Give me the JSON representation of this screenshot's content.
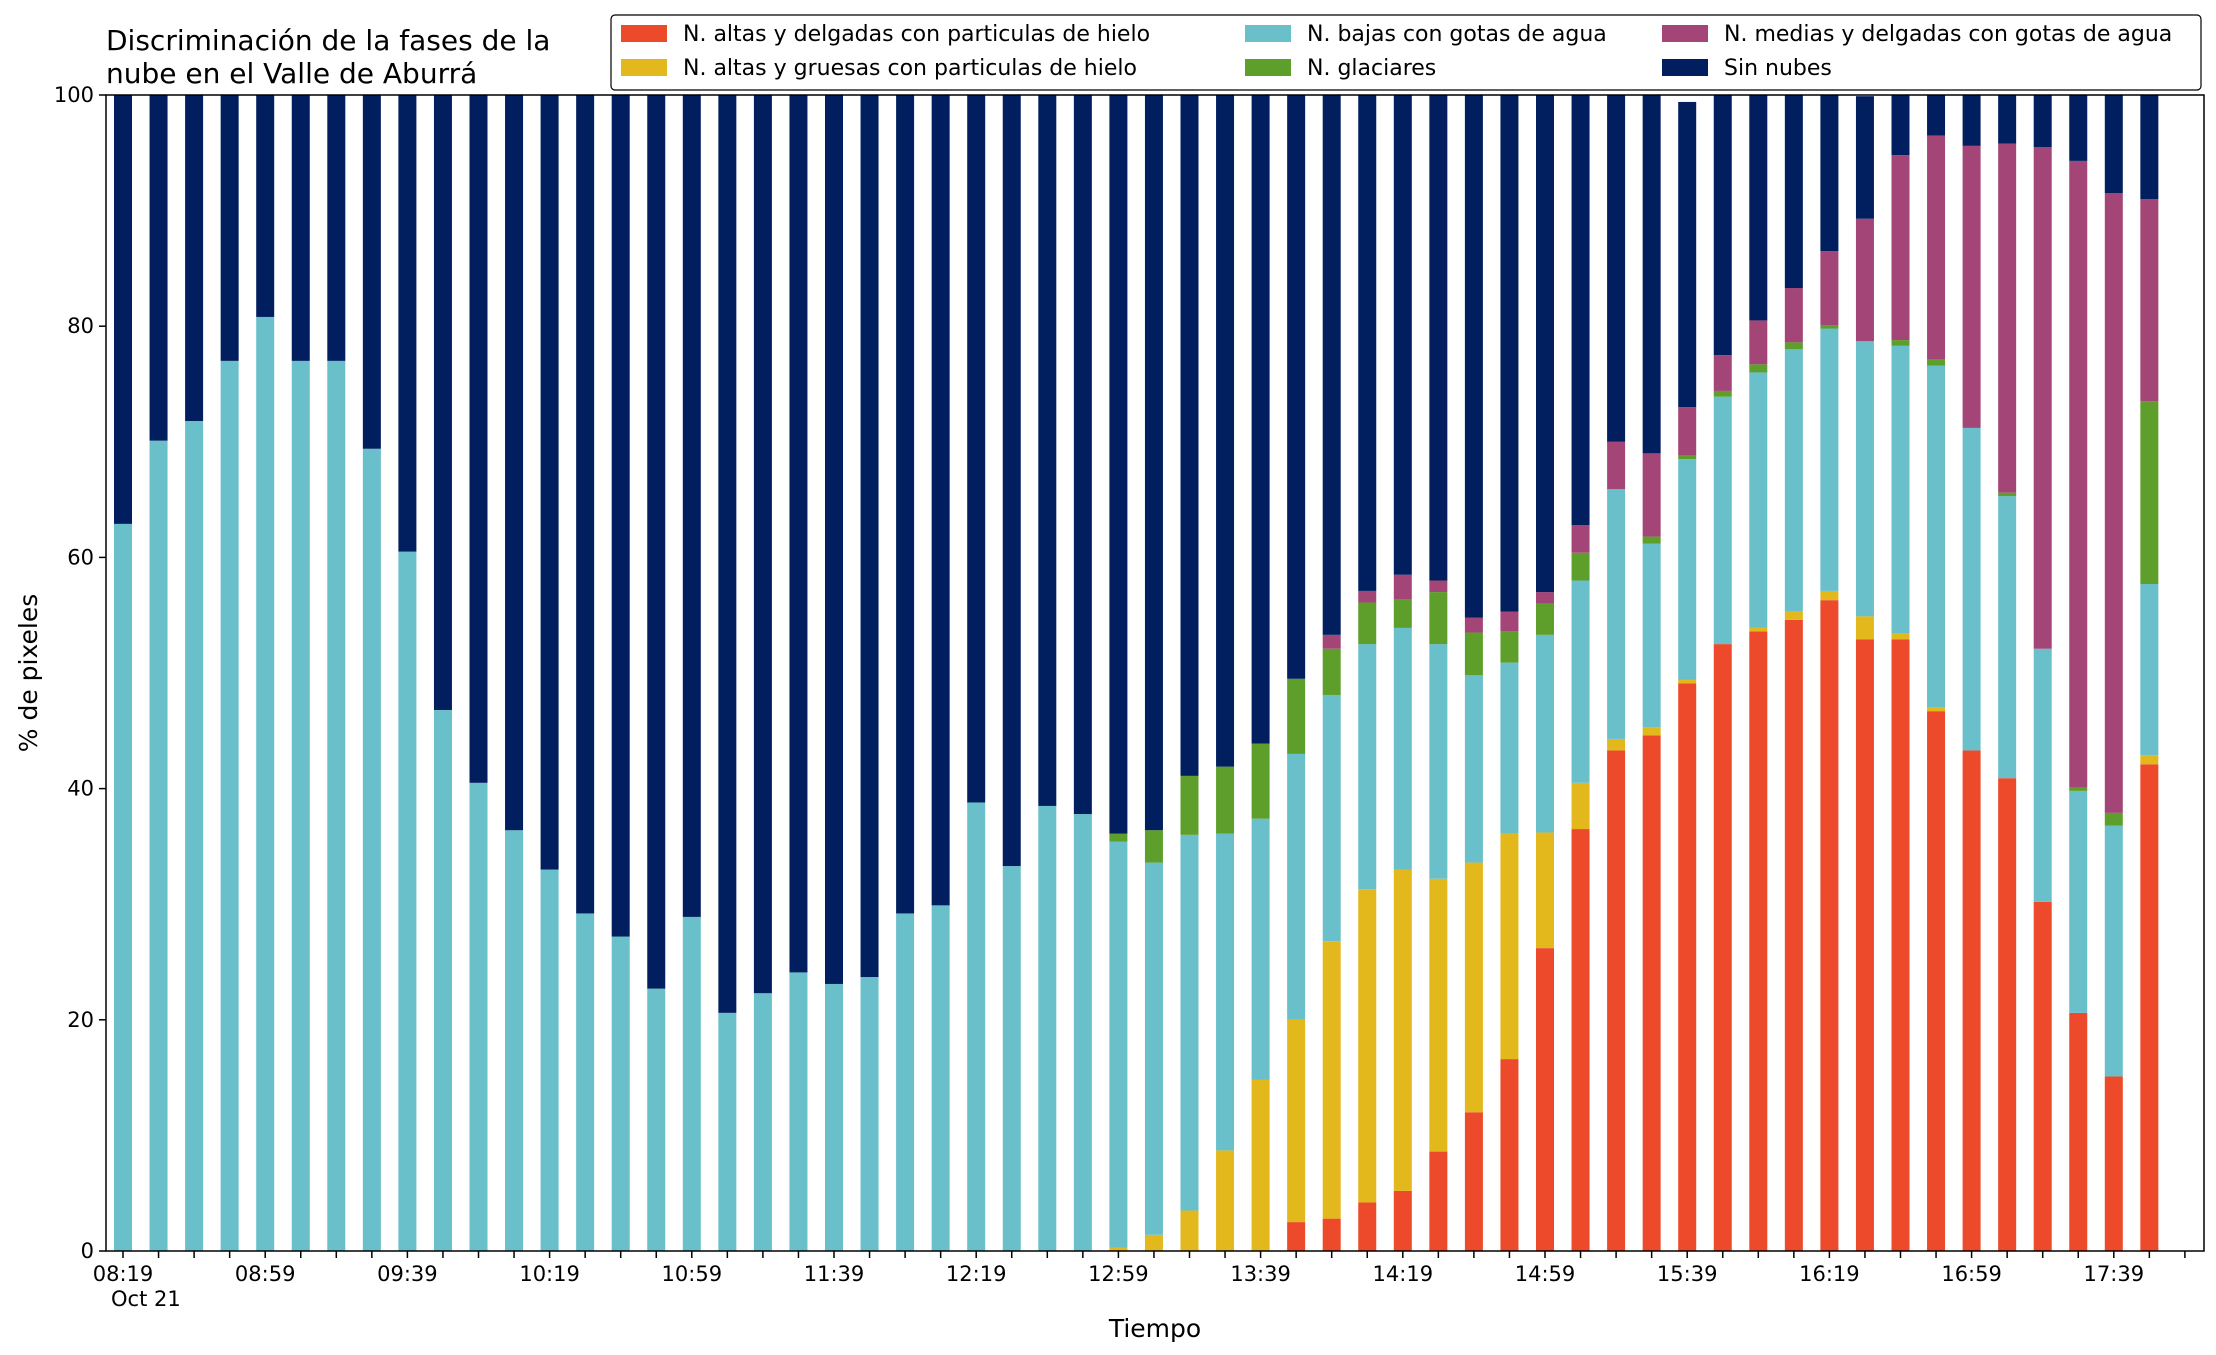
{
  "chart_data": {
    "type": "bar",
    "stacked": true,
    "title": [
      "Discriminación de la fases de la",
      "nube en el Valle de Aburrá"
    ],
    "xlabel": "Tiempo",
    "ylabel": "% de pixeles",
    "ylim": [
      0,
      100
    ],
    "yticks": [
      0,
      20,
      40,
      60,
      80,
      100
    ],
    "x_date_label": "Oct 21",
    "x_tick_labels": [
      "08:19",
      "08:59",
      "09:39",
      "10:19",
      "10:59",
      "11:39",
      "12:19",
      "12:59",
      "13:39",
      "14:19",
      "14:59",
      "15:39",
      "16:19",
      "16:59",
      "17:39"
    ],
    "x_tick_label_every": 4,
    "categories": [
      "08:19",
      "08:29",
      "08:39",
      "08:49",
      "08:59",
      "09:09",
      "09:19",
      "09:29",
      "09:39",
      "09:49",
      "09:59",
      "10:09",
      "10:19",
      "10:29",
      "10:39",
      "10:49",
      "10:59",
      "11:09",
      "11:19",
      "11:29",
      "11:39",
      "11:49",
      "11:59",
      "12:09",
      "12:19",
      "12:29",
      "12:39",
      "12:49",
      "12:59",
      "13:09",
      "13:19",
      "13:29",
      "13:39",
      "13:49",
      "13:59",
      "14:09",
      "14:19",
      "14:29",
      "14:39",
      "14:49",
      "14:59",
      "15:09",
      "15:19",
      "15:29",
      "15:39",
      "15:49",
      "15:59",
      "16:09",
      "16:19",
      "16:29",
      "16:39",
      "16:49",
      "16:59",
      "17:09",
      "17:19",
      "17:29",
      "17:39",
      "17:49"
    ],
    "legend_position": "top-right",
    "legend_columns": 3,
    "grid": false,
    "series": [
      {
        "name": "N. altas y delgadas con particulas de hielo",
        "color": "#EC4A2A",
        "values": [
          0,
          0,
          0,
          0,
          0,
          0,
          0,
          0,
          0,
          0,
          0,
          0,
          0,
          0,
          0,
          0,
          0,
          0,
          0,
          0,
          0,
          0,
          0,
          0,
          0,
          0,
          0,
          0,
          0,
          0,
          0,
          0,
          0,
          2.5,
          2.8,
          4.2,
          5.2,
          8.6,
          12.0,
          16.6,
          26.2,
          36.5,
          43.3,
          44.6,
          49.1,
          52.5,
          53.6,
          54.6,
          56.3,
          52.9,
          52.9,
          46.7,
          43.3,
          40.9,
          30.2,
          20.6,
          15.1,
          42.1
        ]
      },
      {
        "name": "N. altas y gruesas con particulas de hielo",
        "color": "#E3B81C",
        "values": [
          0,
          0,
          0,
          0,
          0,
          0,
          0,
          0,
          0,
          0,
          0,
          0,
          0,
          0,
          0,
          0,
          0,
          0,
          0,
          0,
          0,
          0,
          0,
          0,
          0,
          0,
          0,
          0,
          0.3,
          1.4,
          3.5,
          8.7,
          14.8,
          17.5,
          24.0,
          27.1,
          27.8,
          23.6,
          21.6,
          19.5,
          10.0,
          4.0,
          1.0,
          0.7,
          0.3,
          0,
          0.3,
          0.7,
          0.8,
          2.0,
          0.5,
          0.3,
          0,
          0,
          0,
          0,
          0,
          0.8
        ]
      },
      {
        "name": "N. bajas con gotas de agua",
        "color": "#69BFCA",
        "values": [
          62.9,
          70.1,
          71.8,
          77.0,
          80.8,
          77.0,
          77.0,
          69.4,
          60.5,
          46.8,
          40.5,
          36.4,
          33.0,
          29.2,
          27.2,
          22.7,
          28.9,
          20.6,
          22.3,
          24.1,
          23.1,
          23.7,
          29.2,
          29.9,
          38.8,
          33.3,
          38.5,
          37.8,
          35.1,
          32.2,
          32.5,
          27.4,
          22.6,
          23.0,
          21.3,
          21.2,
          20.9,
          20.3,
          16.2,
          14.8,
          17.1,
          17.5,
          21.6,
          15.9,
          19.1,
          21.4,
          22.1,
          22.7,
          22.7,
          23.8,
          24.9,
          29.6,
          27.9,
          24.4,
          21.9,
          19.2,
          21.7,
          14.8
        ]
      },
      {
        "name": "N. glaciares",
        "color": "#5E9F2B",
        "values": [
          0,
          0,
          0,
          0,
          0,
          0,
          0,
          0,
          0,
          0,
          0,
          0,
          0,
          0,
          0,
          0,
          0,
          0,
          0,
          0,
          0,
          0,
          0,
          0,
          0,
          0,
          0,
          0,
          0.7,
          2.8,
          5.1,
          5.8,
          6.5,
          6.5,
          4.0,
          3.6,
          2.5,
          4.5,
          3.7,
          2.7,
          2.7,
          2.4,
          0,
          0.6,
          0.3,
          0.5,
          0.7,
          0.6,
          0.3,
          0,
          0.5,
          0.5,
          0,
          0.3,
          0,
          0.3,
          1.1,
          15.8
        ]
      },
      {
        "name": "N. medias y delgadas con gotas de agua",
        "color": "#A34577",
        "values": [
          0,
          0,
          0,
          0,
          0,
          0,
          0,
          0,
          0,
          0,
          0,
          0,
          0,
          0,
          0,
          0,
          0,
          0,
          0,
          0,
          0,
          0,
          0,
          0,
          0,
          0,
          0,
          0,
          0,
          0,
          0,
          0,
          0,
          0,
          1.2,
          1.0,
          2.1,
          1.0,
          1.3,
          1.7,
          1.0,
          2.4,
          4.1,
          7.2,
          4.2,
          3.1,
          3.8,
          4.7,
          6.4,
          10.6,
          16.0,
          19.4,
          24.4,
          30.2,
          43.4,
          54.2,
          53.6,
          17.5
        ]
      },
      {
        "name": "Sin nubes",
        "color": "#011F5E",
        "values": [
          37.1,
          29.9,
          28.2,
          23.0,
          19.2,
          23.0,
          23.0,
          30.6,
          39.5,
          53.2,
          59.5,
          63.6,
          67.0,
          70.8,
          72.8,
          77.3,
          71.1,
          79.4,
          77.7,
          75.9,
          76.9,
          76.3,
          70.8,
          70.1,
          61.2,
          66.7,
          61.5,
          62.2,
          63.9,
          63.6,
          58.9,
          58.1,
          56.1,
          50.5,
          46.7,
          42.9,
          41.5,
          42.0,
          45.2,
          44.7,
          43.0,
          37.2,
          30.0,
          31.0,
          26.4,
          22.5,
          19.5,
          16.7,
          13.5,
          10.6,
          5.2,
          3.5,
          4.4,
          4.2,
          4.5,
          5.7,
          8.5,
          9.0
        ]
      }
    ]
  }
}
